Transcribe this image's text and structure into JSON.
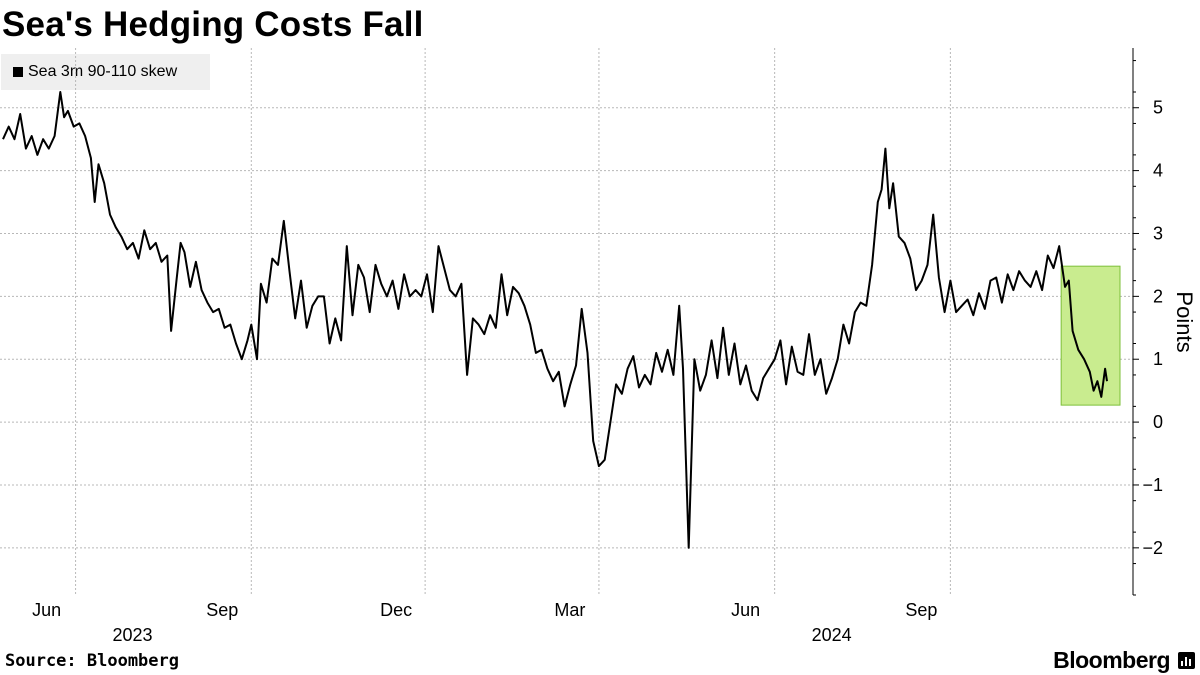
{
  "title": "Sea's Hedging Costs Fall",
  "source": "Source: Bloomberg",
  "brand": "Bloomberg",
  "colors": {
    "line": "#000000",
    "highlight_fill": "#c9ec8f",
    "highlight_stroke": "#7dbf3a",
    "grid": "#b8b8b8",
    "legend_bg": "#efefef"
  },
  "chart_data": {
    "type": "line",
    "title": "Sea's Hedging Costs Fall",
    "ylabel": "Points",
    "ylim": [
      -2.75,
      5.95
    ],
    "yticks": [
      -2,
      -1,
      0,
      1,
      2,
      3,
      4,
      5
    ],
    "grid": true,
    "legend_placement": "top-left",
    "x_range": [
      "2023-04-24",
      "2024-11-22"
    ],
    "month_ticks": [
      {
        "date": "2023-06-01",
        "label": "Jun",
        "year": "2023"
      },
      {
        "date": "2023-09-01",
        "label": "Sep",
        "year": ""
      },
      {
        "date": "2023-12-01",
        "label": "Dec",
        "year": ""
      },
      {
        "date": "2024-03-01",
        "label": "Mar",
        "year": ""
      },
      {
        "date": "2024-06-01",
        "label": "Jun",
        "year": "2024"
      },
      {
        "date": "2024-09-01",
        "label": "Sep",
        "year": ""
      }
    ],
    "year_labels": [
      {
        "label": "2023",
        "date": "2023-07-16"
      },
      {
        "label": "2024",
        "date": "2024-07-16"
      }
    ],
    "highlight": {
      "x0": "2024-10-29",
      "x1": "2024-12-05",
      "y0": 0.27,
      "y1": 2.48
    },
    "series": [
      {
        "name": "Sea 3m 90-110 skew",
        "points": [
          [
            "2023-04-24",
            4.5
          ],
          [
            "2023-04-27",
            4.7
          ],
          [
            "2023-04-30",
            4.5
          ],
          [
            "2023-05-03",
            4.9
          ],
          [
            "2023-05-06",
            4.35
          ],
          [
            "2023-05-09",
            4.55
          ],
          [
            "2023-05-12",
            4.25
          ],
          [
            "2023-05-15",
            4.5
          ],
          [
            "2023-05-18",
            4.35
          ],
          [
            "2023-05-21",
            4.55
          ],
          [
            "2023-05-24",
            5.25
          ],
          [
            "2023-05-26",
            4.85
          ],
          [
            "2023-05-28",
            4.95
          ],
          [
            "2023-05-31",
            4.7
          ],
          [
            "2023-06-03",
            4.75
          ],
          [
            "2023-06-06",
            4.55
          ],
          [
            "2023-06-09",
            4.2
          ],
          [
            "2023-06-11",
            3.5
          ],
          [
            "2023-06-13",
            4.1
          ],
          [
            "2023-06-16",
            3.8
          ],
          [
            "2023-06-19",
            3.3
          ],
          [
            "2023-06-22",
            3.1
          ],
          [
            "2023-06-25",
            2.95
          ],
          [
            "2023-06-28",
            2.75
          ],
          [
            "2023-07-01",
            2.85
          ],
          [
            "2023-07-04",
            2.6
          ],
          [
            "2023-07-07",
            3.05
          ],
          [
            "2023-07-10",
            2.75
          ],
          [
            "2023-07-13",
            2.85
          ],
          [
            "2023-07-16",
            2.55
          ],
          [
            "2023-07-19",
            2.65
          ],
          [
            "2023-07-21",
            1.45
          ],
          [
            "2023-07-24",
            2.3
          ],
          [
            "2023-07-26",
            2.85
          ],
          [
            "2023-07-28",
            2.7
          ],
          [
            "2023-07-31",
            2.15
          ],
          [
            "2023-08-03",
            2.55
          ],
          [
            "2023-08-06",
            2.1
          ],
          [
            "2023-08-09",
            1.9
          ],
          [
            "2023-08-12",
            1.75
          ],
          [
            "2023-08-15",
            1.8
          ],
          [
            "2023-08-18",
            1.5
          ],
          [
            "2023-08-21",
            1.55
          ],
          [
            "2023-08-24",
            1.25
          ],
          [
            "2023-08-27",
            1.0
          ],
          [
            "2023-08-30",
            1.3
          ],
          [
            "2023-09-01",
            1.55
          ],
          [
            "2023-09-04",
            1.0
          ],
          [
            "2023-09-06",
            2.2
          ],
          [
            "2023-09-09",
            1.9
          ],
          [
            "2023-09-12",
            2.6
          ],
          [
            "2023-09-15",
            2.5
          ],
          [
            "2023-09-18",
            3.2
          ],
          [
            "2023-09-21",
            2.4
          ],
          [
            "2023-09-24",
            1.65
          ],
          [
            "2023-09-27",
            2.25
          ],
          [
            "2023-09-30",
            1.5
          ],
          [
            "2023-10-03",
            1.85
          ],
          [
            "2023-10-06",
            2.0
          ],
          [
            "2023-10-09",
            2.0
          ],
          [
            "2023-10-12",
            1.25
          ],
          [
            "2023-10-15",
            1.65
          ],
          [
            "2023-10-18",
            1.3
          ],
          [
            "2023-10-21",
            2.8
          ],
          [
            "2023-10-24",
            1.7
          ],
          [
            "2023-10-27",
            2.5
          ],
          [
            "2023-10-30",
            2.3
          ],
          [
            "2023-11-02",
            1.75
          ],
          [
            "2023-11-05",
            2.5
          ],
          [
            "2023-11-08",
            2.2
          ],
          [
            "2023-11-11",
            2.0
          ],
          [
            "2023-11-14",
            2.25
          ],
          [
            "2023-11-17",
            1.8
          ],
          [
            "2023-11-20",
            2.35
          ],
          [
            "2023-11-23",
            2.0
          ],
          [
            "2023-11-26",
            2.1
          ],
          [
            "2023-11-29",
            2.0
          ],
          [
            "2023-12-02",
            2.35
          ],
          [
            "2023-12-05",
            1.75
          ],
          [
            "2023-12-08",
            2.8
          ],
          [
            "2023-12-11",
            2.45
          ],
          [
            "2023-12-14",
            2.1
          ],
          [
            "2023-12-17",
            2.0
          ],
          [
            "2023-12-20",
            2.2
          ],
          [
            "2023-12-23",
            0.75
          ],
          [
            "2023-12-26",
            1.65
          ],
          [
            "2023-12-29",
            1.55
          ],
          [
            "2024-01-01",
            1.4
          ],
          [
            "2024-01-04",
            1.7
          ],
          [
            "2024-01-07",
            1.5
          ],
          [
            "2024-01-10",
            2.35
          ],
          [
            "2024-01-13",
            1.7
          ],
          [
            "2024-01-16",
            2.15
          ],
          [
            "2024-01-19",
            2.05
          ],
          [
            "2024-01-22",
            1.85
          ],
          [
            "2024-01-25",
            1.55
          ],
          [
            "2024-01-28",
            1.1
          ],
          [
            "2024-01-31",
            1.15
          ],
          [
            "2024-02-03",
            0.85
          ],
          [
            "2024-02-06",
            0.65
          ],
          [
            "2024-02-09",
            0.8
          ],
          [
            "2024-02-12",
            0.25
          ],
          [
            "2024-02-15",
            0.6
          ],
          [
            "2024-02-18",
            0.9
          ],
          [
            "2024-02-21",
            1.8
          ],
          [
            "2024-02-24",
            1.1
          ],
          [
            "2024-02-27",
            -0.3
          ],
          [
            "2024-03-01",
            -0.7
          ],
          [
            "2024-03-04",
            -0.6
          ],
          [
            "2024-03-07",
            0.0
          ],
          [
            "2024-03-10",
            0.6
          ],
          [
            "2024-03-13",
            0.45
          ],
          [
            "2024-03-16",
            0.85
          ],
          [
            "2024-03-19",
            1.05
          ],
          [
            "2024-03-22",
            0.55
          ],
          [
            "2024-03-25",
            0.75
          ],
          [
            "2024-03-28",
            0.6
          ],
          [
            "2024-03-31",
            1.1
          ],
          [
            "2024-04-03",
            0.8
          ],
          [
            "2024-04-06",
            1.15
          ],
          [
            "2024-04-09",
            0.75
          ],
          [
            "2024-04-12",
            1.85
          ],
          [
            "2024-04-14",
            0.85
          ],
          [
            "2024-04-17",
            -2.0
          ],
          [
            "2024-04-20",
            1.0
          ],
          [
            "2024-04-23",
            0.5
          ],
          [
            "2024-04-26",
            0.75
          ],
          [
            "2024-04-29",
            1.3
          ],
          [
            "2024-05-02",
            0.7
          ],
          [
            "2024-05-05",
            1.5
          ],
          [
            "2024-05-08",
            0.75
          ],
          [
            "2024-05-11",
            1.25
          ],
          [
            "2024-05-14",
            0.6
          ],
          [
            "2024-05-17",
            0.9
          ],
          [
            "2024-05-20",
            0.5
          ],
          [
            "2024-05-23",
            0.35
          ],
          [
            "2024-05-26",
            0.7
          ],
          [
            "2024-05-29",
            0.85
          ],
          [
            "2024-06-01",
            1.0
          ],
          [
            "2024-06-04",
            1.3
          ],
          [
            "2024-06-07",
            0.6
          ],
          [
            "2024-06-10",
            1.2
          ],
          [
            "2024-06-13",
            0.8
          ],
          [
            "2024-06-16",
            0.75
          ],
          [
            "2024-06-19",
            1.4
          ],
          [
            "2024-06-22",
            0.75
          ],
          [
            "2024-06-25",
            1.0
          ],
          [
            "2024-06-28",
            0.45
          ],
          [
            "2024-07-01",
            0.7
          ],
          [
            "2024-07-04",
            1.0
          ],
          [
            "2024-07-07",
            1.55
          ],
          [
            "2024-07-10",
            1.25
          ],
          [
            "2024-07-13",
            1.75
          ],
          [
            "2024-07-16",
            1.9
          ],
          [
            "2024-07-19",
            1.85
          ],
          [
            "2024-07-22",
            2.5
          ],
          [
            "2024-07-25",
            3.5
          ],
          [
            "2024-07-27",
            3.7
          ],
          [
            "2024-07-29",
            4.35
          ],
          [
            "2024-07-31",
            3.4
          ],
          [
            "2024-08-02",
            3.8
          ],
          [
            "2024-08-05",
            2.95
          ],
          [
            "2024-08-08",
            2.85
          ],
          [
            "2024-08-11",
            2.6
          ],
          [
            "2024-08-14",
            2.1
          ],
          [
            "2024-08-17",
            2.25
          ],
          [
            "2024-08-20",
            2.5
          ],
          [
            "2024-08-23",
            3.3
          ],
          [
            "2024-08-26",
            2.3
          ],
          [
            "2024-08-29",
            1.75
          ],
          [
            "2024-09-01",
            2.25
          ],
          [
            "2024-09-04",
            1.75
          ],
          [
            "2024-09-07",
            1.85
          ],
          [
            "2024-09-10",
            1.95
          ],
          [
            "2024-09-13",
            1.7
          ],
          [
            "2024-09-16",
            2.05
          ],
          [
            "2024-09-19",
            1.8
          ],
          [
            "2024-09-22",
            2.25
          ],
          [
            "2024-09-25",
            2.3
          ],
          [
            "2024-09-28",
            1.9
          ],
          [
            "2024-10-01",
            2.35
          ],
          [
            "2024-10-04",
            2.1
          ],
          [
            "2024-10-07",
            2.4
          ],
          [
            "2024-10-10",
            2.25
          ],
          [
            "2024-10-13",
            2.15
          ],
          [
            "2024-10-16",
            2.4
          ],
          [
            "2024-10-19",
            2.1
          ],
          [
            "2024-10-22",
            2.65
          ],
          [
            "2024-10-25",
            2.45
          ],
          [
            "2024-10-28",
            2.8
          ],
          [
            "2024-10-31",
            2.15
          ],
          [
            "2024-11-02",
            2.25
          ],
          [
            "2024-11-04",
            1.45
          ],
          [
            "2024-11-07",
            1.15
          ],
          [
            "2024-11-10",
            1.0
          ],
          [
            "2024-11-13",
            0.8
          ],
          [
            "2024-11-15",
            0.5
          ],
          [
            "2024-11-17",
            0.65
          ],
          [
            "2024-11-19",
            0.4
          ],
          [
            "2024-11-21",
            0.85
          ],
          [
            "2024-11-22",
            0.65
          ]
        ]
      }
    ]
  }
}
